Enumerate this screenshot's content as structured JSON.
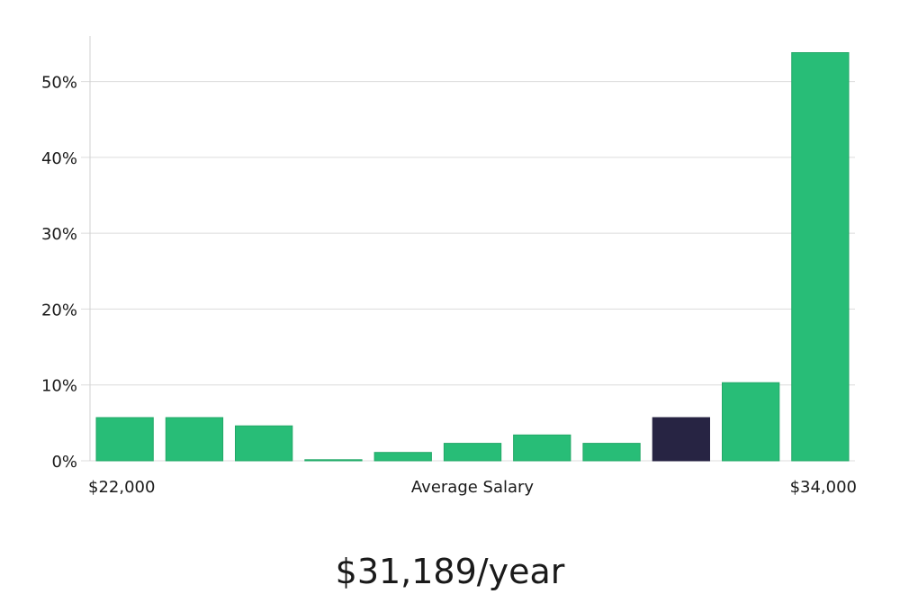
{
  "chart_data": {
    "type": "bar",
    "categories": [
      "1",
      "2",
      "3",
      "4",
      "5",
      "6",
      "7",
      "8",
      "9",
      "10",
      "11"
    ],
    "values": [
      5.7,
      5.7,
      4.6,
      0.1,
      1.1,
      2.3,
      3.4,
      2.3,
      5.7,
      10.3,
      53.8
    ],
    "highlight_index": 8,
    "ylim": [
      0,
      56
    ],
    "yticks": [
      0,
      10,
      20,
      30,
      40,
      50
    ],
    "ytick_suffix": "%",
    "xlabel": "Average Salary",
    "x_start_label": "$22,000",
    "x_end_label": "$34,000",
    "grid": true,
    "colors": {
      "bar": "#28bd77",
      "bar_edge": "#22a867",
      "highlight": "#272443",
      "grid": "#dcdcdc",
      "axis": "#d0d0d0"
    }
  },
  "headline": "$31,189/year"
}
